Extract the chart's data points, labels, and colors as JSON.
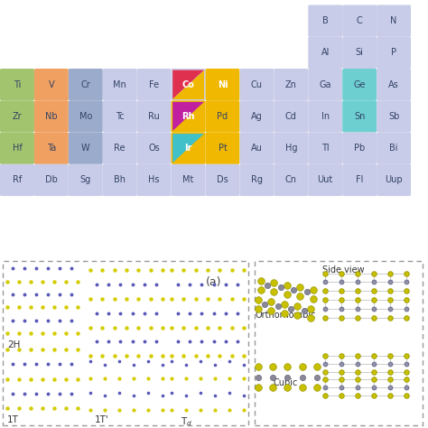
{
  "background": "#ffffff",
  "plain_color": "#c8cce8",
  "metal_green": "#a3c46e",
  "metal_orange": "#f0a060",
  "metal_blue": "#9aabcc",
  "metal_yellow": "#f0b800",
  "chalcogen_color": "#6dcfcf",
  "co_red": "#e03050",
  "rh_magenta": "#c020a0",
  "ir_teal": "#40c0c8",
  "label_color": "#334466",
  "elements": {
    "row0": [
      {
        "sym": "B",
        "col": 9,
        "color": "plain"
      },
      {
        "sym": "C",
        "col": 10,
        "color": "plain"
      },
      {
        "sym": "N",
        "col": 11,
        "color": "plain"
      }
    ],
    "row1": [
      {
        "sym": "Al",
        "col": 9,
        "color": "plain"
      },
      {
        "sym": "Si",
        "col": 10,
        "color": "plain"
      },
      {
        "sym": "P",
        "col": 11,
        "color": "plain"
      }
    ],
    "row2": [
      {
        "sym": "Ti",
        "col": 0,
        "color": "green"
      },
      {
        "sym": "V",
        "col": 1,
        "color": "orange"
      },
      {
        "sym": "Cr",
        "col": 2,
        "color": "blue"
      },
      {
        "sym": "Mn",
        "col": 3,
        "color": "plain"
      },
      {
        "sym": "Fe",
        "col": 4,
        "color": "plain"
      },
      {
        "sym": "Co",
        "col": 5,
        "color": "co_special"
      },
      {
        "sym": "Ni",
        "col": 6,
        "color": "ni_special"
      },
      {
        "sym": "Cu",
        "col": 7,
        "color": "plain"
      },
      {
        "sym": "Zn",
        "col": 8,
        "color": "plain"
      },
      {
        "sym": "Ga",
        "col": 9,
        "color": "plain"
      },
      {
        "sym": "Ge",
        "col": 10,
        "color": "chalc"
      },
      {
        "sym": "As",
        "col": 11,
        "color": "plain"
      }
    ],
    "row3": [
      {
        "sym": "Zr",
        "col": 0,
        "color": "green"
      },
      {
        "sym": "Nb",
        "col": 1,
        "color": "orange"
      },
      {
        "sym": "Mo",
        "col": 2,
        "color": "blue"
      },
      {
        "sym": "Tc",
        "col": 3,
        "color": "plain"
      },
      {
        "sym": "Ru",
        "col": 4,
        "color": "plain"
      },
      {
        "sym": "Rh",
        "col": 5,
        "color": "rh_special"
      },
      {
        "sym": "Pd",
        "col": 6,
        "color": "yellow"
      },
      {
        "sym": "Ag",
        "col": 7,
        "color": "plain"
      },
      {
        "sym": "Cd",
        "col": 8,
        "color": "plain"
      },
      {
        "sym": "In",
        "col": 9,
        "color": "plain"
      },
      {
        "sym": "Sn",
        "col": 10,
        "color": "chalc"
      },
      {
        "sym": "Sb",
        "col": 11,
        "color": "plain"
      }
    ],
    "row4": [
      {
        "sym": "Hf",
        "col": 0,
        "color": "green"
      },
      {
        "sym": "Ta",
        "col": 1,
        "color": "orange"
      },
      {
        "sym": "W",
        "col": 2,
        "color": "blue"
      },
      {
        "sym": "Re",
        "col": 3,
        "color": "plain"
      },
      {
        "sym": "Os",
        "col": 4,
        "color": "plain"
      },
      {
        "sym": "Ir",
        "col": 5,
        "color": "ir_special"
      },
      {
        "sym": "Pt",
        "col": 6,
        "color": "yellow"
      },
      {
        "sym": "Au",
        "col": 7,
        "color": "plain"
      },
      {
        "sym": "Hg",
        "col": 8,
        "color": "plain"
      },
      {
        "sym": "Tl",
        "col": 9,
        "color": "plain"
      },
      {
        "sym": "Pb",
        "col": 10,
        "color": "plain"
      },
      {
        "sym": "Bi",
        "col": 11,
        "color": "plain"
      }
    ],
    "row5": [
      {
        "sym": "Rf",
        "col": 0,
        "color": "plain"
      },
      {
        "sym": "Db",
        "col": 1,
        "color": "plain"
      },
      {
        "sym": "Sg",
        "col": 2,
        "color": "plain"
      },
      {
        "sym": "Bh",
        "col": 3,
        "color": "plain"
      },
      {
        "sym": "Hs",
        "col": 4,
        "color": "plain"
      },
      {
        "sym": "Mt",
        "col": 5,
        "color": "plain"
      },
      {
        "sym": "Ds",
        "col": 6,
        "color": "plain"
      },
      {
        "sym": "Rg",
        "col": 7,
        "color": "plain"
      },
      {
        "sym": "Cn",
        "col": 8,
        "color": "plain"
      },
      {
        "sym": "Uut",
        "col": 9,
        "color": "plain"
      },
      {
        "sym": "Fl",
        "col": 10,
        "color": "plain"
      },
      {
        "sym": "Uup",
        "col": 11,
        "color": "plain"
      }
    ]
  }
}
